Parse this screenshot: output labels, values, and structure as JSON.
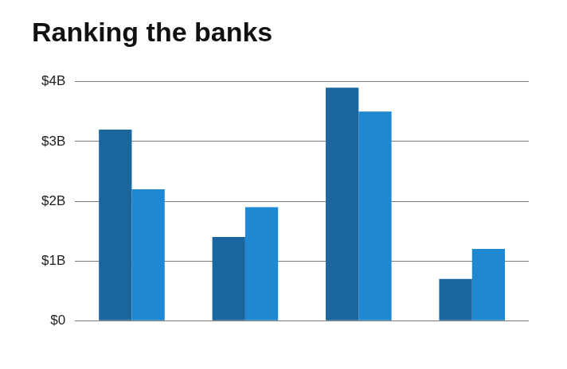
{
  "chart_data": {
    "type": "bar",
    "title": "Ranking the banks",
    "categories": [
      null,
      null,
      null,
      null
    ],
    "series": [
      {
        "color": "#1b669f",
        "values": [
          3.2,
          1.4,
          3.9,
          0.7
        ]
      },
      {
        "color": "#1e88d2",
        "values": [
          2.2,
          1.9,
          3.5,
          1.2
        ]
      }
    ],
    "ylim": [
      0,
      4
    ],
    "yticks": [
      {
        "value": 0,
        "label": "$0"
      },
      {
        "value": 1,
        "label": "$1B"
      },
      {
        "value": 2,
        "label": "$2B"
      },
      {
        "value": 3,
        "label": "$3B"
      },
      {
        "value": 4,
        "label": "$4B"
      }
    ],
    "grid": true
  }
}
